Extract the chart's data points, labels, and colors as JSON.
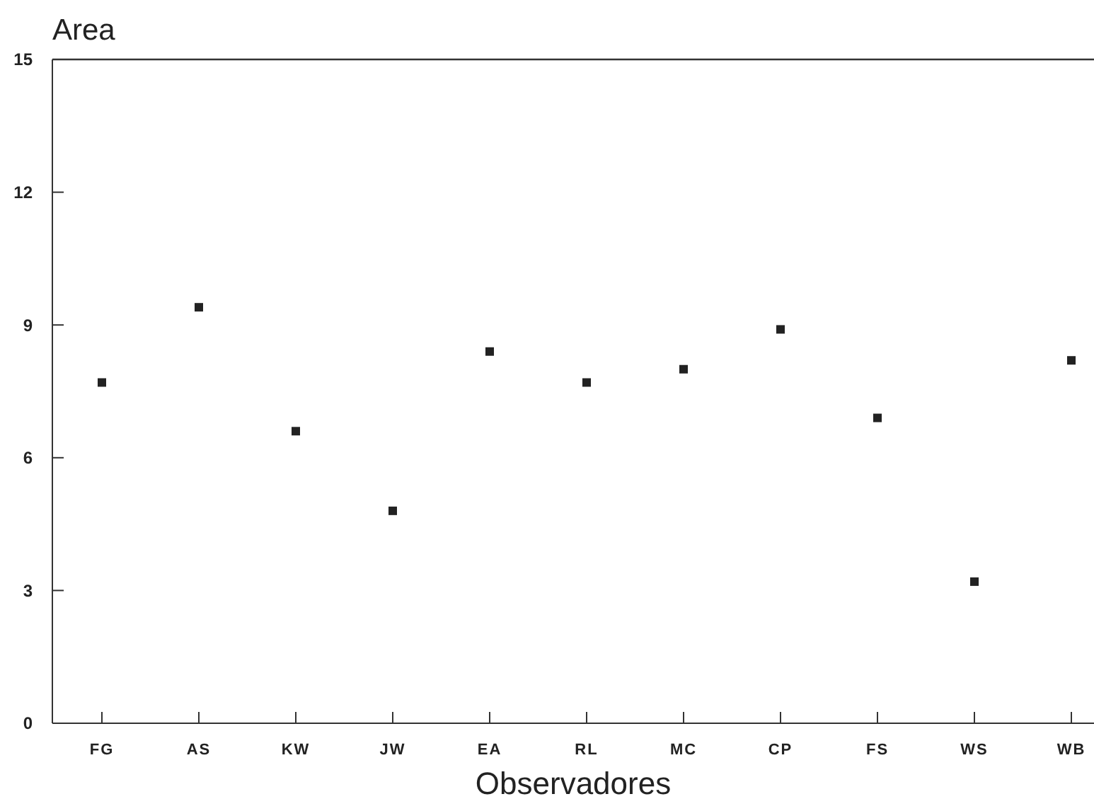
{
  "chart_data": {
    "type": "scatter",
    "title": "Area",
    "xlabel": "Observadores",
    "categories": [
      "FG",
      "AS",
      "KW",
      "JW",
      "EA",
      "RL",
      "MC",
      "CP",
      "FS",
      "WS",
      "WB"
    ],
    "values": [
      7.7,
      9.4,
      6.6,
      4.8,
      8.4,
      7.7,
      8.0,
      8.9,
      6.9,
      3.2,
      8.2
    ],
    "color": "#222222",
    "marker": "square",
    "ylim": [
      0,
      15
    ],
    "yticks": [
      0,
      3,
      6,
      9,
      12,
      15
    ],
    "grid": false
  }
}
